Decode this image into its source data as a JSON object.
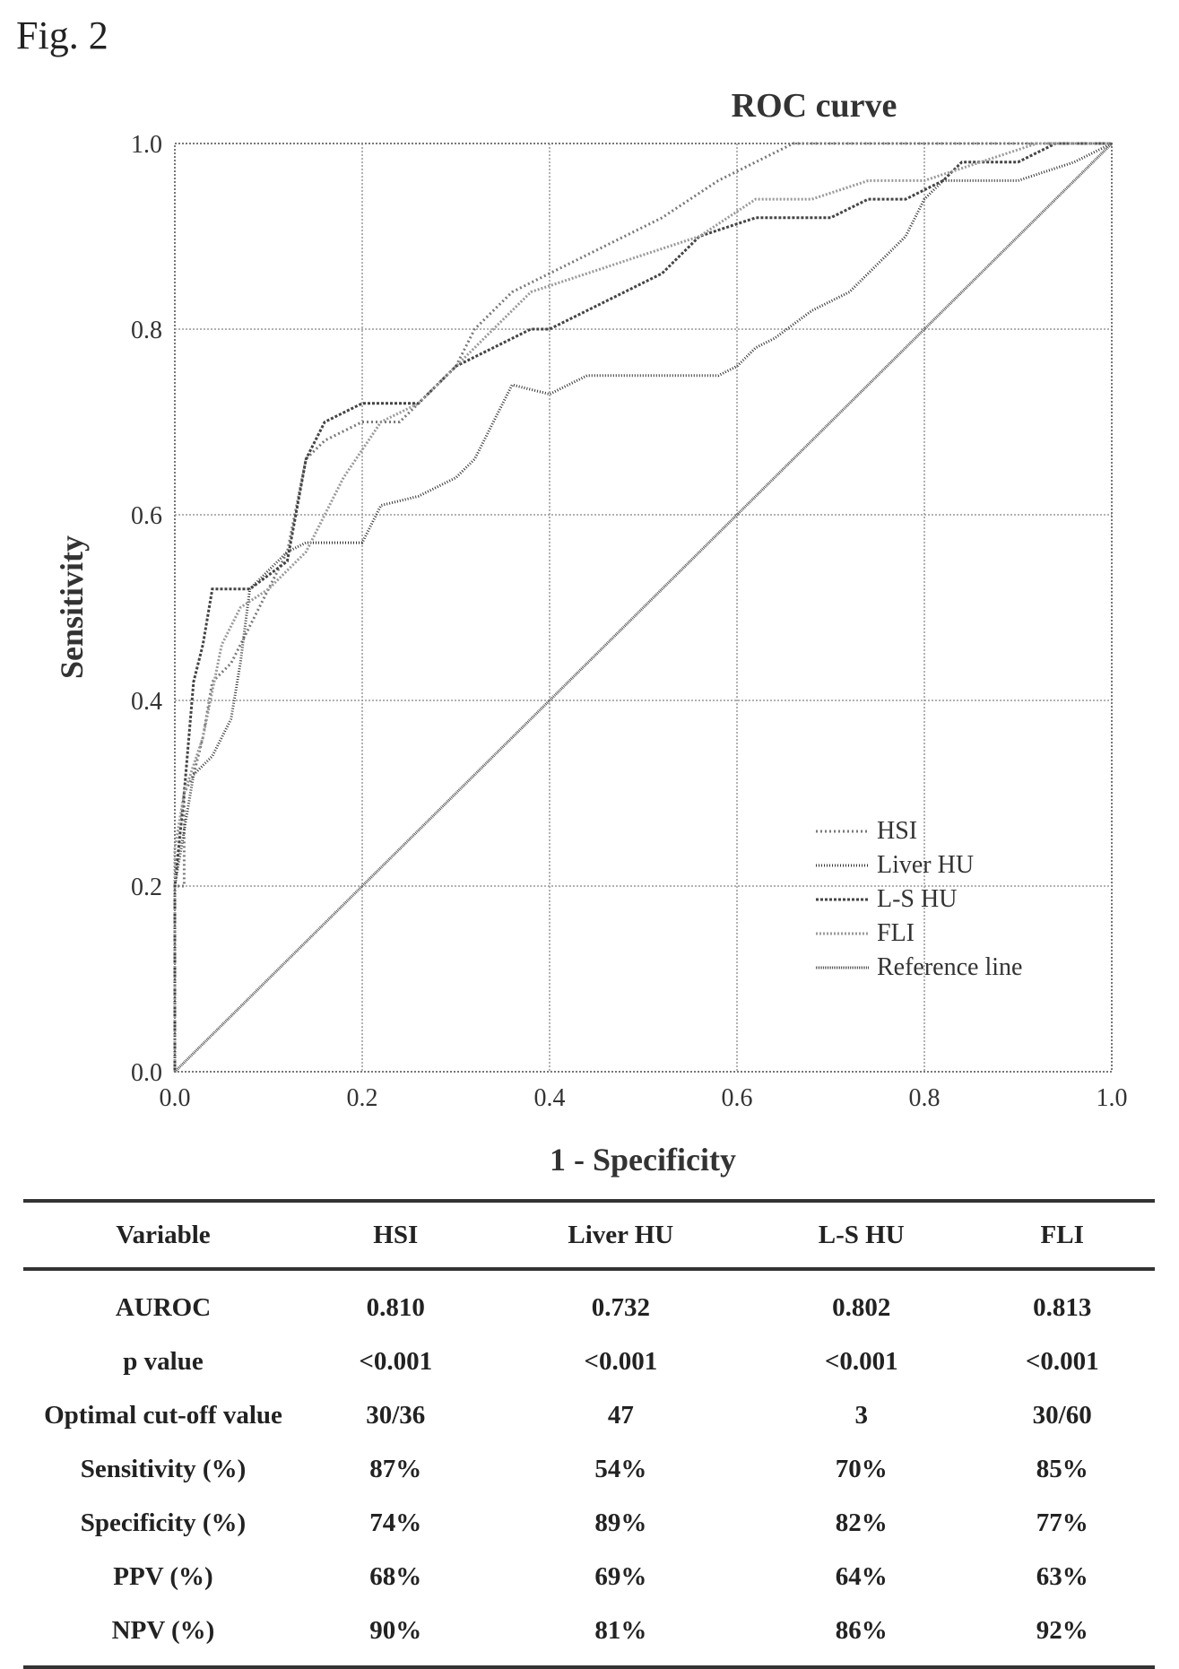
{
  "figure_label": "Fig. 2",
  "chart_data": {
    "type": "line",
    "title": "ROC curve",
    "xlabel": "1 - Specificity",
    "ylabel": "Sensitivity",
    "xlim": [
      0.0,
      1.0
    ],
    "ylim": [
      0.0,
      1.0
    ],
    "x_ticks": [
      "0.0",
      "0.2",
      "0.4",
      "0.6",
      "0.8",
      "1.0"
    ],
    "y_ticks": [
      "0.0",
      "0.2",
      "0.4",
      "0.6",
      "0.8",
      "1.0"
    ],
    "grid": true,
    "legend_position": "bottom-right",
    "series": [
      {
        "name": "HSI",
        "color": "#7a7a7a",
        "dash": "2,3",
        "points": [
          [
            0,
            0
          ],
          [
            0,
            0.2
          ],
          [
            0.01,
            0.2
          ],
          [
            0.01,
            0.3
          ],
          [
            0.02,
            0.32
          ],
          [
            0.03,
            0.36
          ],
          [
            0.04,
            0.42
          ],
          [
            0.06,
            0.44
          ],
          [
            0.08,
            0.48
          ],
          [
            0.1,
            0.52
          ],
          [
            0.12,
            0.56
          ],
          [
            0.14,
            0.66
          ],
          [
            0.16,
            0.68
          ],
          [
            0.2,
            0.7
          ],
          [
            0.24,
            0.7
          ],
          [
            0.3,
            0.76
          ],
          [
            0.32,
            0.8
          ],
          [
            0.36,
            0.84
          ],
          [
            0.4,
            0.86
          ],
          [
            0.44,
            0.88
          ],
          [
            0.48,
            0.9
          ],
          [
            0.52,
            0.92
          ],
          [
            0.58,
            0.96
          ],
          [
            0.66,
            1.0
          ],
          [
            1,
            1.0
          ]
        ]
      },
      {
        "name": "Liver HU",
        "color": "#333333",
        "dash": "1,2",
        "points": [
          [
            0,
            0
          ],
          [
            0,
            0.2
          ],
          [
            0.01,
            0.26
          ],
          [
            0.02,
            0.32
          ],
          [
            0.04,
            0.34
          ],
          [
            0.06,
            0.38
          ],
          [
            0.07,
            0.44
          ],
          [
            0.08,
            0.52
          ],
          [
            0.1,
            0.54
          ],
          [
            0.12,
            0.56
          ],
          [
            0.14,
            0.57
          ],
          [
            0.2,
            0.57
          ],
          [
            0.22,
            0.61
          ],
          [
            0.26,
            0.62
          ],
          [
            0.3,
            0.64
          ],
          [
            0.32,
            0.66
          ],
          [
            0.34,
            0.7
          ],
          [
            0.36,
            0.74
          ],
          [
            0.4,
            0.73
          ],
          [
            0.42,
            0.74
          ],
          [
            0.44,
            0.75
          ],
          [
            0.5,
            0.75
          ],
          [
            0.58,
            0.75
          ],
          [
            0.6,
            0.76
          ],
          [
            0.62,
            0.78
          ],
          [
            0.64,
            0.79
          ],
          [
            0.68,
            0.82
          ],
          [
            0.72,
            0.84
          ],
          [
            0.76,
            0.88
          ],
          [
            0.78,
            0.9
          ],
          [
            0.8,
            0.94
          ],
          [
            0.82,
            0.96
          ],
          [
            0.9,
            0.96
          ],
          [
            0.96,
            0.98
          ],
          [
            1,
            1.0
          ]
        ]
      },
      {
        "name": "L-S HU",
        "color": "#444444",
        "dash": "3,2",
        "points": [
          [
            0,
            0
          ],
          [
            0,
            0.2
          ],
          [
            0.01,
            0.3
          ],
          [
            0.02,
            0.42
          ],
          [
            0.03,
            0.46
          ],
          [
            0.04,
            0.52
          ],
          [
            0.08,
            0.52
          ],
          [
            0.12,
            0.55
          ],
          [
            0.14,
            0.66
          ],
          [
            0.16,
            0.7
          ],
          [
            0.2,
            0.72
          ],
          [
            0.26,
            0.72
          ],
          [
            0.3,
            0.76
          ],
          [
            0.34,
            0.78
          ],
          [
            0.38,
            0.8
          ],
          [
            0.4,
            0.8
          ],
          [
            0.44,
            0.82
          ],
          [
            0.48,
            0.84
          ],
          [
            0.52,
            0.86
          ],
          [
            0.56,
            0.9
          ],
          [
            0.62,
            0.92
          ],
          [
            0.7,
            0.92
          ],
          [
            0.74,
            0.94
          ],
          [
            0.78,
            0.94
          ],
          [
            0.82,
            0.96
          ],
          [
            0.84,
            0.98
          ],
          [
            0.9,
            0.98
          ],
          [
            0.94,
            1.0
          ],
          [
            1,
            1.0
          ]
        ]
      },
      {
        "name": "FLI",
        "color": "#9a9a9a",
        "dash": "2,2",
        "points": [
          [
            0,
            0
          ],
          [
            0,
            0.24
          ],
          [
            0.01,
            0.3
          ],
          [
            0.03,
            0.36
          ],
          [
            0.05,
            0.46
          ],
          [
            0.07,
            0.5
          ],
          [
            0.1,
            0.52
          ],
          [
            0.14,
            0.56
          ],
          [
            0.16,
            0.6
          ],
          [
            0.18,
            0.64
          ],
          [
            0.22,
            0.7
          ],
          [
            0.26,
            0.72
          ],
          [
            0.3,
            0.76
          ],
          [
            0.34,
            0.8
          ],
          [
            0.38,
            0.84
          ],
          [
            0.44,
            0.86
          ],
          [
            0.5,
            0.88
          ],
          [
            0.56,
            0.9
          ],
          [
            0.62,
            0.94
          ],
          [
            0.68,
            0.94
          ],
          [
            0.74,
            0.96
          ],
          [
            0.8,
            0.96
          ],
          [
            0.86,
            0.98
          ],
          [
            0.92,
            1.0
          ],
          [
            1,
            1.0
          ]
        ]
      },
      {
        "name": "Reference line",
        "color": "#555555",
        "dash": "1,1",
        "points": [
          [
            0,
            0
          ],
          [
            1,
            1
          ]
        ]
      }
    ]
  },
  "table": {
    "headers": [
      "Variable",
      "HSI",
      "Liver HU",
      "L-S HU",
      "FLI"
    ],
    "rows": [
      [
        "AUROC",
        "0.810",
        "0.732",
        "0.802",
        "0.813"
      ],
      [
        "p value",
        "<0.001",
        "<0.001",
        "<0.001",
        "<0.001"
      ],
      [
        "Optimal cut-off value",
        "30/36",
        "47",
        "3",
        "30/60"
      ],
      [
        "Sensitivity (%)",
        "87%",
        "54%",
        "70%",
        "85%"
      ],
      [
        "Specificity (%)",
        "74%",
        "89%",
        "82%",
        "77%"
      ],
      [
        "PPV (%)",
        "68%",
        "69%",
        "64%",
        "63%"
      ],
      [
        "NPV (%)",
        "90%",
        "81%",
        "86%",
        "92%"
      ]
    ]
  }
}
